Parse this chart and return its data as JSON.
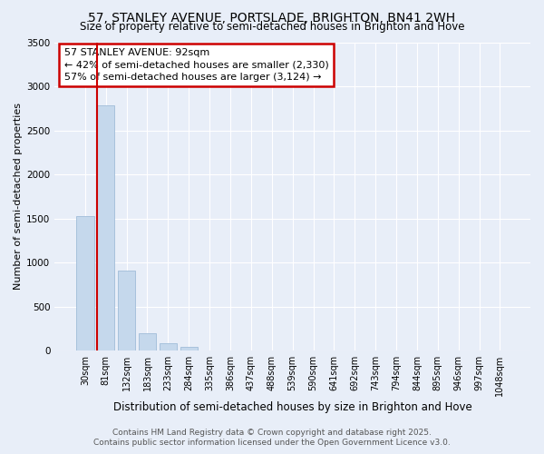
{
  "title_line1": "57, STANLEY AVENUE, PORTSLADE, BRIGHTON, BN41 2WH",
  "title_line2": "Size of property relative to semi-detached houses in Brighton and Hove",
  "xlabel": "Distribution of semi-detached houses by size in Brighton and Hove",
  "ylabel": "Number of semi-detached properties",
  "footer_line1": "Contains HM Land Registry data © Crown copyright and database right 2025.",
  "footer_line2": "Contains public sector information licensed under the Open Government Licence v3.0.",
  "annotation_title": "57 STANLEY AVENUE: 92sqm",
  "annotation_line2": "← 42% of semi-detached houses are smaller (2,330)",
  "annotation_line3": "57% of semi-detached houses are larger (3,124) →",
  "bar_labels": [
    "30sqm",
    "81sqm",
    "132sqm",
    "183sqm",
    "233sqm",
    "284sqm",
    "335sqm",
    "386sqm",
    "437sqm",
    "488sqm",
    "539sqm",
    "590sqm",
    "641sqm",
    "692sqm",
    "743sqm",
    "794sqm",
    "844sqm",
    "895sqm",
    "946sqm",
    "997sqm",
    "1048sqm"
  ],
  "bar_values": [
    1530,
    2780,
    910,
    200,
    90,
    40,
    8,
    3,
    0,
    0,
    0,
    0,
    0,
    0,
    0,
    0,
    0,
    0,
    0,
    0,
    0
  ],
  "vline_x": 0.575,
  "bar_color": "#c5d8ec",
  "bar_edgecolor": "#a0bcd8",
  "vline_color": "#cc0000",
  "annotation_box_edgecolor": "#cc0000",
  "ylim": [
    0,
    3500
  ],
  "yticks": [
    0,
    500,
    1000,
    1500,
    2000,
    2500,
    3000,
    3500
  ],
  "background_color": "#e8eef8",
  "plot_bg_color": "#e8eef8",
  "grid_color": "#ffffff",
  "title_fontsize": 10,
  "subtitle_fontsize": 8.5,
  "axis_label_fontsize": 8,
  "tick_fontsize": 7,
  "annotation_fontsize": 8,
  "footer_fontsize": 6.5
}
